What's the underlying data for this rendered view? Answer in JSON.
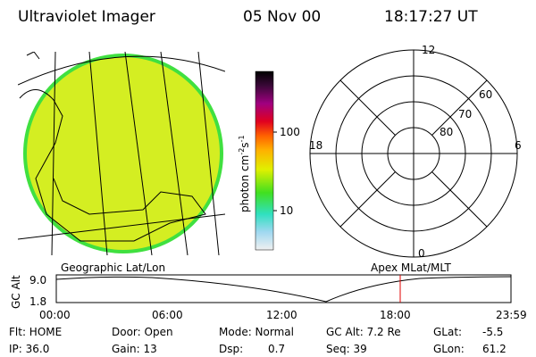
{
  "header": {
    "instrument": "Ultraviolet Imager",
    "date": "05 Nov 00",
    "time": "18:17:27 UT"
  },
  "colorbar": {
    "label": "photon cm",
    "exp1": "-2",
    "mid": "s",
    "exp2": "-1",
    "ticks": [
      "100",
      "10"
    ]
  },
  "polar": {
    "mlt_labels": [
      "12",
      "18",
      "6",
      "0"
    ],
    "lat_labels": [
      "60",
      "70",
      "80"
    ]
  },
  "captions": {
    "left": "Geographic Lat/Lon",
    "right": "Apex MLat/MLT"
  },
  "timeline": {
    "axis_label": "GC Alt",
    "ymax": "9.0",
    "ymin": "1.8",
    "times": [
      "00:00",
      "06:00",
      "12:00",
      "18:00",
      "23:59"
    ]
  },
  "footer": {
    "row1": [
      "Flt: HOME",
      "Door: Open",
      "Mode: Normal",
      "GC Alt: 7.2 Re",
      "GLat:",
      "-5.5"
    ],
    "row2": [
      "IP: 36.0",
      "Gain: 13",
      "Dsp:",
      "0.7",
      "Seq: 39",
      "GLon:",
      "61.2"
    ]
  }
}
